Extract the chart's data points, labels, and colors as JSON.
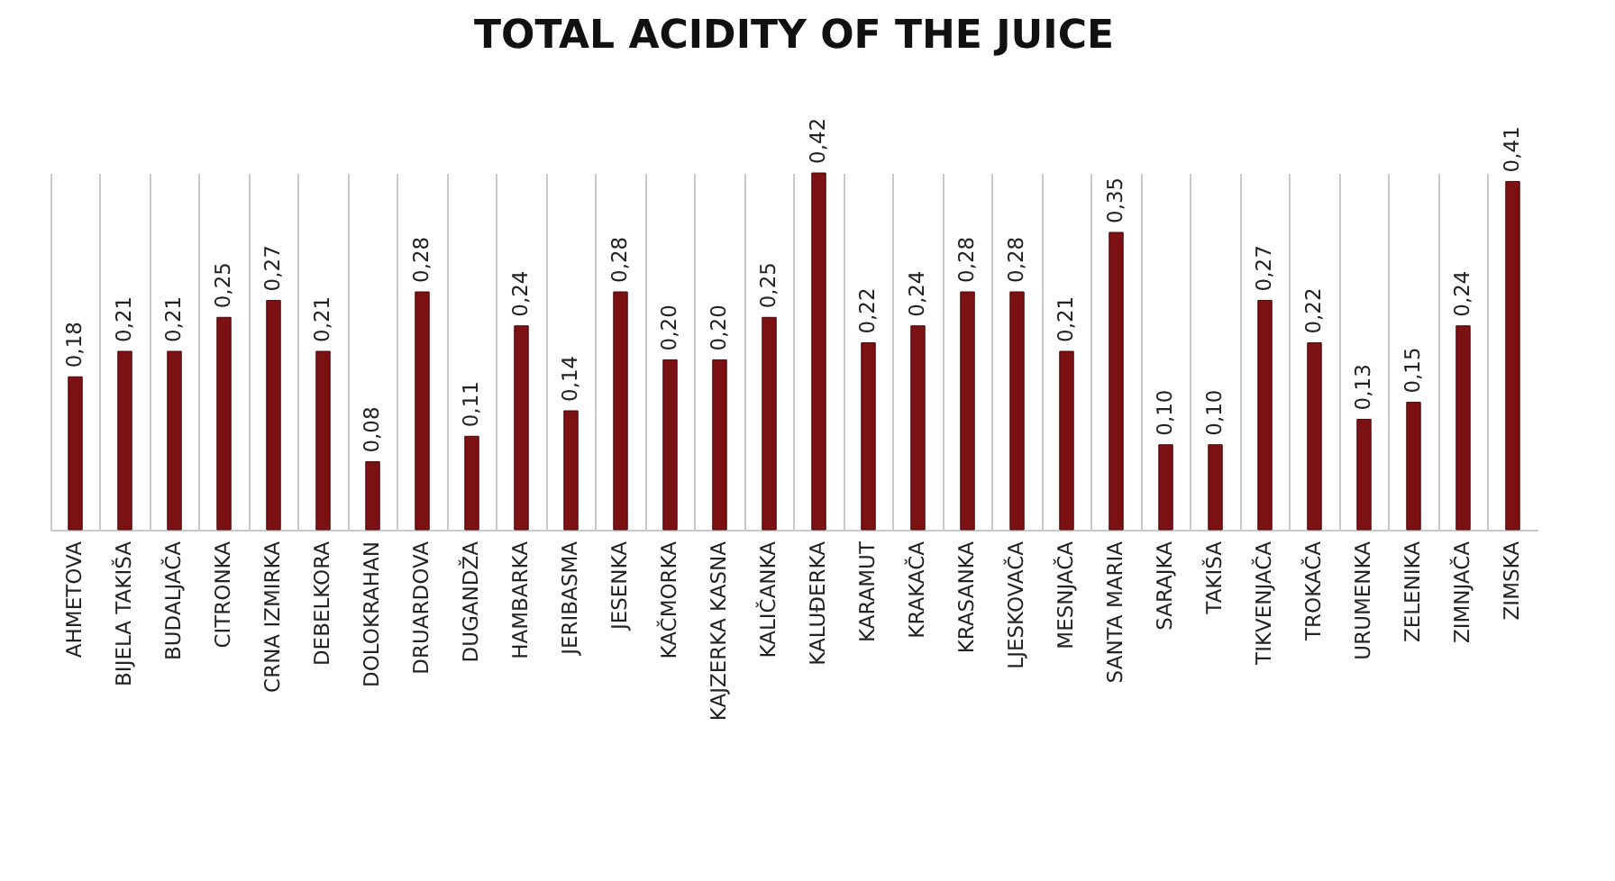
{
  "chart_data": {
    "type": "bar",
    "title": "TOTAL ACIDITY OF THE JUICE",
    "categories": [
      "AHMETOVA",
      "BIJELA TAKIŠA",
      "BUDALJAČA",
      "CITRONKA",
      "CRNA IZMIRKA",
      "DEBELKORA",
      "DOLOKRAHAN",
      "DRUARDOVA",
      "DUGANDŽA",
      "HAMBARKA",
      "JERIBASMA",
      "JESENKA",
      "KAČMORKA",
      "KAJZERKA KASNA",
      "KALIČANKA",
      "KALUĐERKA",
      "KARAMUT",
      "KRAKAČA",
      "KRASANKA",
      "LJESKOVAČA",
      "MESNJAČA",
      "SANTA MARIA",
      "SARAJKA",
      "TAKIŠA",
      "TIKVENJAČA",
      "TROKAČA",
      "URUMENKA",
      "ZELENIKA",
      "ZIMNJAČA",
      "ZIMSKA"
    ],
    "values": [
      0.18,
      0.21,
      0.21,
      0.25,
      0.27,
      0.21,
      0.08,
      0.28,
      0.11,
      0.24,
      0.14,
      0.28,
      0.2,
      0.2,
      0.25,
      0.42,
      0.22,
      0.24,
      0.28,
      0.28,
      0.21,
      0.35,
      0.1,
      0.1,
      0.27,
      0.22,
      0.13,
      0.15,
      0.24,
      0.41
    ],
    "value_labels": [
      "0,18",
      "0,21",
      "0,21",
      "0,25",
      "0,27",
      "0,21",
      "0,08",
      "0,28",
      "0,11",
      "0,24",
      "0,14",
      "0,28",
      "0,20",
      "0,20",
      "0,25",
      "0,42",
      "0,22",
      "0,24",
      "0,28",
      "0,28",
      "0,21",
      "0,35",
      "0,10",
      "0,10",
      "0,27",
      "0,22",
      "0,13",
      "0,15",
      "0,24",
      "0,41"
    ],
    "color": "#7b1113",
    "grid": "x"
  }
}
